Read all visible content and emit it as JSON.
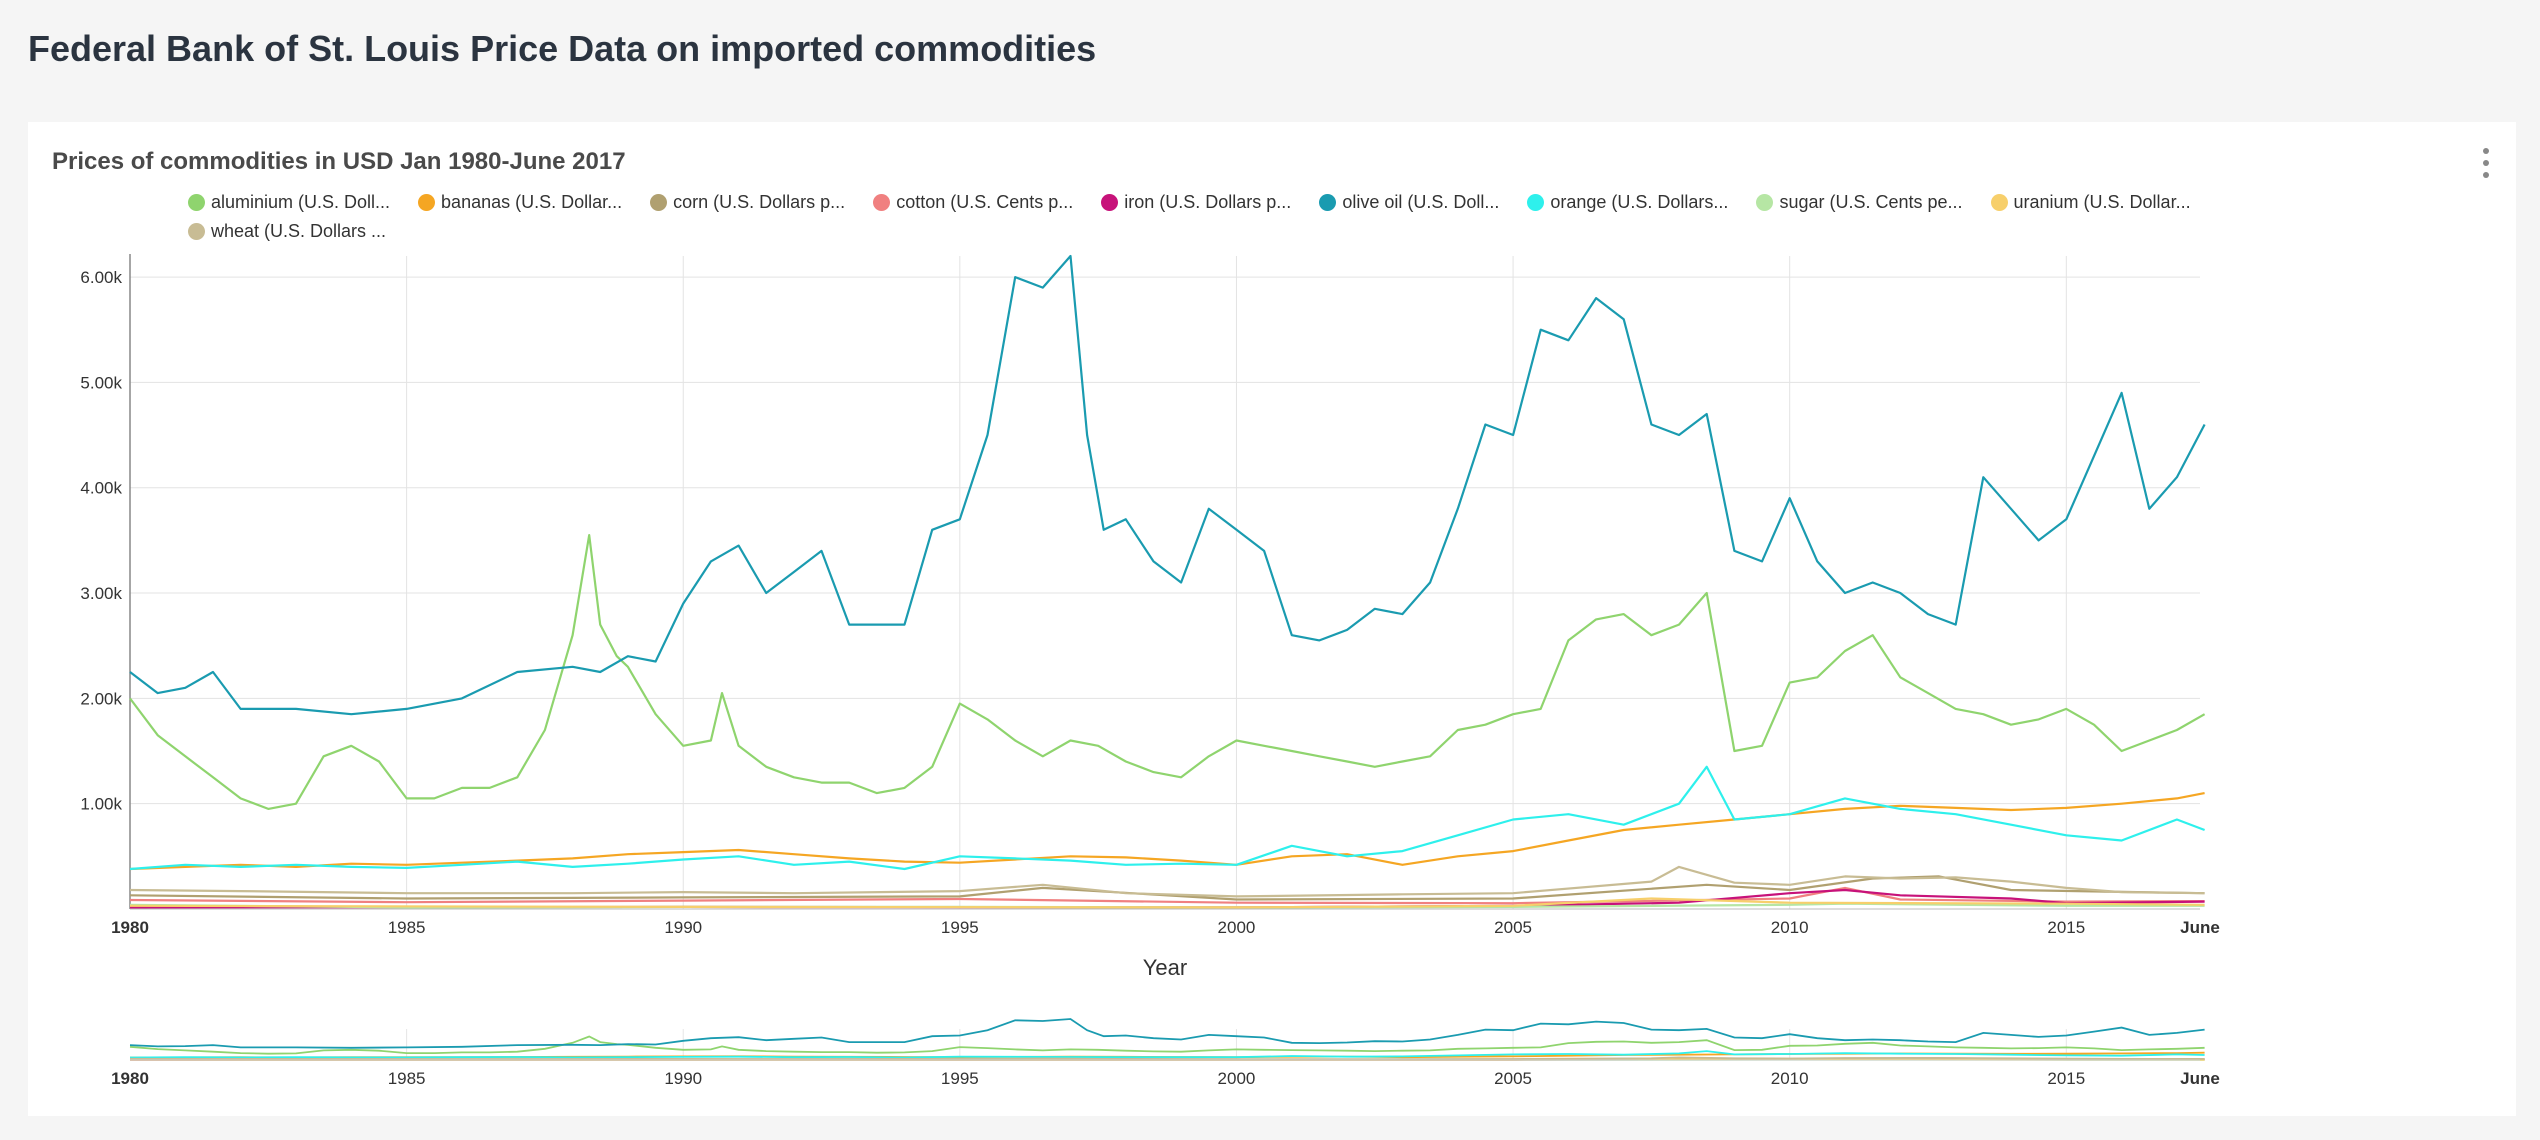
{
  "page": {
    "title": "Federal Bank of St. Louis Price Data on imported commodities",
    "menu_icon": "more-vertical-icon"
  },
  "chart_data": {
    "type": "line",
    "title": "Prices of commodities in USD Jan 1980-June 2017",
    "xlabel": "Year",
    "ylabel": "",
    "xlim": [
      "1980-01",
      "2017-06"
    ],
    "ylim": [
      0,
      6200
    ],
    "x_ticks": [
      "1980",
      "1985",
      "1990",
      "1995",
      "2000",
      "2005",
      "2010",
      "2015",
      "June"
    ],
    "y_ticks": [
      "1.00k",
      "2.00k",
      "3.00k",
      "4.00k",
      "5.00k",
      "6.00k"
    ],
    "grid": true,
    "legend_position": "top",
    "has_range_selector": true,
    "series": [
      {
        "name": "aluminium (U.S. Doll...",
        "color": "#8fd46e",
        "x": [
          1980.0,
          1980.5,
          1981.0,
          1981.5,
          1982.0,
          1982.5,
          1983.0,
          1983.5,
          1984.0,
          1984.5,
          1985.0,
          1985.5,
          1986.0,
          1986.5,
          1987.0,
          1987.5,
          1988.0,
          1988.3,
          1988.5,
          1988.8,
          1989.0,
          1989.5,
          1990.0,
          1990.5,
          1990.7,
          1991.0,
          1991.5,
          1992.0,
          1992.5,
          1993.0,
          1993.5,
          1994.0,
          1994.5,
          1995.0,
          1995.5,
          1996.0,
          1996.5,
          1997.0,
          1997.5,
          1998.0,
          1998.5,
          1999.0,
          1999.5,
          2000.0,
          2000.5,
          2001.0,
          2001.5,
          2002.0,
          2002.5,
          2003.0,
          2003.5,
          2004.0,
          2004.5,
          2005.0,
          2005.5,
          2006.0,
          2006.5,
          2007.0,
          2007.5,
          2008.0,
          2008.5,
          2009.0,
          2009.5,
          2010.0,
          2010.5,
          2011.0,
          2011.5,
          2012.0,
          2012.5,
          2013.0,
          2013.5,
          2014.0,
          2014.5,
          2015.0,
          2015.5,
          2016.0,
          2016.5,
          2017.0,
          2017.5
        ],
        "values": [
          2000,
          1650,
          1450,
          1250,
          1050,
          950,
          1000,
          1450,
          1550,
          1400,
          1050,
          1050,
          1150,
          1150,
          1250,
          1700,
          2600,
          3550,
          2700,
          2400,
          2300,
          1850,
          1550,
          1600,
          2050,
          1550,
          1350,
          1250,
          1200,
          1200,
          1100,
          1150,
          1350,
          1950,
          1800,
          1600,
          1450,
          1600,
          1550,
          1400,
          1300,
          1250,
          1450,
          1600,
          1550,
          1500,
          1450,
          1400,
          1350,
          1400,
          1450,
          1700,
          1750,
          1850,
          1900,
          2550,
          2750,
          2800,
          2600,
          2700,
          3000,
          1500,
          1550,
          2150,
          2200,
          2450,
          2600,
          2200,
          2050,
          1900,
          1850,
          1750,
          1800,
          1900,
          1750,
          1500,
          1600,
          1700,
          1850
        ]
      },
      {
        "name": "bananas (U.S. Dollar...",
        "color": "#f5a623",
        "x": [
          1980.0,
          1981.0,
          1982.0,
          1983.0,
          1984.0,
          1985.0,
          1986.0,
          1987.0,
          1988.0,
          1989.0,
          1990.0,
          1991.0,
          1992.0,
          1993.0,
          1994.0,
          1995.0,
          1996.0,
          1997.0,
          1998.0,
          1999.0,
          2000.0,
          2001.0,
          2002.0,
          2003.0,
          2004.0,
          2005.0,
          2006.0,
          2007.0,
          2008.0,
          2009.0,
          2010.0,
          2011.0,
          2012.0,
          2013.0,
          2014.0,
          2015.0,
          2016.0,
          2017.0,
          2017.5
        ],
        "values": [
          380,
          400,
          420,
          400,
          430,
          420,
          440,
          460,
          480,
          520,
          540,
          560,
          520,
          480,
          450,
          440,
          470,
          500,
          490,
          460,
          420,
          500,
          520,
          420,
          500,
          550,
          650,
          750,
          800,
          850,
          900,
          950,
          980,
          960,
          940,
          960,
          1000,
          1050,
          1100
        ]
      },
      {
        "name": "corn (U.S. Dollars p...",
        "color": "#b0a070",
        "x": [
          1980.0,
          1985.0,
          1990.0,
          1995.0,
          1996.5,
          2000.0,
          2005.0,
          2008.5,
          2010.0,
          2011.5,
          2012.7,
          2014.0,
          2017.5
        ],
        "values": [
          130,
          100,
          110,
          120,
          200,
          90,
          100,
          230,
          180,
          290,
          310,
          180,
          150
        ]
      },
      {
        "name": "cotton (U.S. Cents p...",
        "color": "#f08080",
        "x": [
          1980.0,
          1985.0,
          1990.0,
          1995.0,
          2000.0,
          2005.0,
          2010.0,
          2011.0,
          2012.0,
          2015.0,
          2017.5
        ],
        "values": [
          85,
          65,
          80,
          95,
          60,
          55,
          100,
          200,
          90,
          70,
          75
        ]
      },
      {
        "name": "iron (U.S. Dollars p...",
        "color": "#c7127a",
        "x": [
          1980.0,
          1990.0,
          2000.0,
          2005.0,
          2008.0,
          2010.0,
          2011.0,
          2012.0,
          2014.0,
          2015.0,
          2017.5
        ],
        "values": [
          15,
          20,
          15,
          30,
          60,
          150,
          180,
          130,
          100,
          55,
          70
        ]
      },
      {
        "name": "olive oil (U.S. Doll...",
        "color": "#1a9bb0",
        "x": [
          1980.0,
          1980.5,
          1981.0,
          1981.5,
          1982.0,
          1983.0,
          1984.0,
          1985.0,
          1986.0,
          1987.0,
          1988.0,
          1988.5,
          1989.0,
          1989.5,
          1990.0,
          1990.5,
          1991.0,
          1991.5,
          1992.0,
          1992.5,
          1993.0,
          1993.5,
          1994.0,
          1994.5,
          1995.0,
          1995.5,
          1996.0,
          1996.5,
          1997.0,
          1997.3,
          1997.6,
          1998.0,
          1998.5,
          1999.0,
          1999.5,
          2000.0,
          2000.5,
          2001.0,
          2001.5,
          2002.0,
          2002.5,
          2003.0,
          2003.5,
          2004.0,
          2004.5,
          2005.0,
          2005.5,
          2006.0,
          2006.5,
          2007.0,
          2007.5,
          2008.0,
          2008.5,
          2009.0,
          2009.5,
          2010.0,
          2010.5,
          2011.0,
          2011.5,
          2012.0,
          2012.5,
          2013.0,
          2013.5,
          2014.0,
          2014.5,
          2015.0,
          2015.5,
          2016.0,
          2016.5,
          2017.0,
          2017.5
        ],
        "values": [
          2250,
          2050,
          2100,
          2250,
          1900,
          1900,
          1850,
          1900,
          2000,
          2250,
          2300,
          2250,
          2400,
          2350,
          2900,
          3300,
          3450,
          3000,
          3200,
          3400,
          2700,
          2700,
          2700,
          3600,
          3700,
          4500,
          6000,
          5900,
          6200,
          4500,
          3600,
          3700,
          3300,
          3100,
          3800,
          3600,
          3400,
          2600,
          2550,
          2650,
          2850,
          2800,
          3100,
          3800,
          4600,
          4500,
          5500,
          5400,
          5800,
          5600,
          4600,
          4500,
          4700,
          3400,
          3300,
          3900,
          3300,
          3000,
          3100,
          3000,
          2800,
          2700,
          4100,
          3800,
          3500,
          3700,
          4300,
          4900,
          3800,
          4100,
          4600
        ]
      },
      {
        "name": "orange (U.S. Dollars...",
        "color": "#2ef0ec",
        "x": [
          1980.0,
          1981.0,
          1982.0,
          1983.0,
          1984.0,
          1985.0,
          1986.0,
          1987.0,
          1988.0,
          1989.0,
          1990.0,
          1991.0,
          1992.0,
          1993.0,
          1994.0,
          1995.0,
          1996.0,
          1997.0,
          1998.0,
          1999.0,
          2000.0,
          2001.0,
          2002.0,
          2003.0,
          2004.0,
          2005.0,
          2006.0,
          2007.0,
          2008.0,
          2008.5,
          2009.0,
          2010.0,
          2011.0,
          2012.0,
          2013.0,
          2014.0,
          2015.0,
          2016.0,
          2017.0,
          2017.5
        ],
        "values": [
          380,
          420,
          400,
          420,
          400,
          390,
          420,
          450,
          400,
          430,
          470,
          500,
          420,
          450,
          380,
          500,
          480,
          460,
          420,
          430,
          420,
          600,
          500,
          550,
          700,
          850,
          900,
          800,
          1000,
          1350,
          850,
          900,
          1050,
          950,
          900,
          800,
          700,
          650,
          850,
          750
        ]
      },
      {
        "name": "sugar (U.S. Cents pe...",
        "color": "#b6e6a4",
        "x": [
          1980.0,
          1985.0,
          1990.0,
          1995.0,
          2000.0,
          2005.0,
          2010.0,
          2011.0,
          2015.0,
          2017.5
        ],
        "values": [
          40,
          15,
          20,
          20,
          15,
          20,
          40,
          50,
          30,
          30
        ]
      },
      {
        "name": "uranium (U.S. Dollar...",
        "color": "#f7cf6b",
        "x": [
          1980.0,
          1990.0,
          2000.0,
          2005.0,
          2007.5,
          2010.0,
          2015.0,
          2017.5
        ],
        "values": [
          30,
          20,
          15,
          30,
          100,
          60,
          50,
          40
        ]
      },
      {
        "name": "wheat (U.S. Dollars ...",
        "color": "#c8bc94",
        "x": [
          1980.0,
          1982.0,
          1985.0,
          1988.0,
          1990.0,
          1992.0,
          1995.0,
          1996.5,
          1998.0,
          2000.0,
          2003.0,
          2005.0,
          2007.5,
          2008.0,
          2009.0,
          2010.0,
          2011.0,
          2012.0,
          2013.0,
          2014.0,
          2015.0,
          2016.0,
          2017.5
        ],
        "values": [
          180,
          170,
          150,
          150,
          160,
          150,
          170,
          230,
          150,
          120,
          140,
          150,
          260,
          400,
          250,
          230,
          310,
          290,
          300,
          260,
          200,
          160,
          150
        ]
      }
    ]
  }
}
